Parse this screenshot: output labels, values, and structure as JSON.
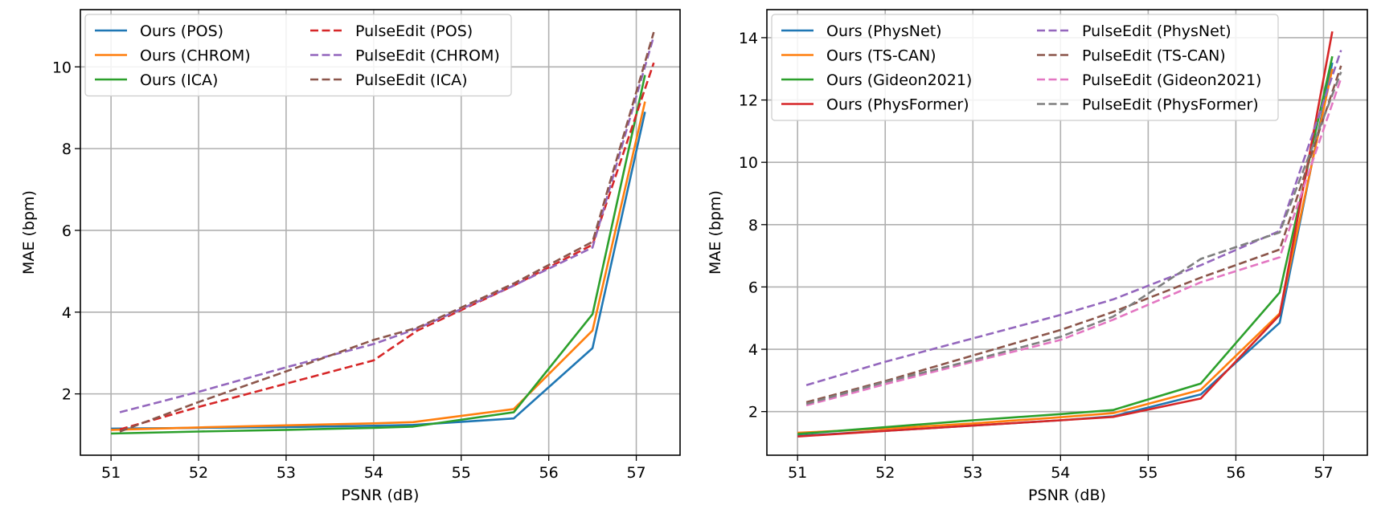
{
  "chart_data": [
    {
      "type": "line",
      "title": "",
      "xlabel": "PSNR (dB)",
      "ylabel": "MAE (bpm)",
      "xlim": [
        50.65,
        57.5
      ],
      "ylim": [
        0.5,
        11.4
      ],
      "xticks": [
        51,
        52,
        53,
        54,
        55,
        56,
        57
      ],
      "yticks": [
        2,
        4,
        6,
        8,
        10
      ],
      "grid": true,
      "legend": {
        "placement": "top-left",
        "columns": 2
      },
      "series": [
        {
          "name": "Ours (POS)",
          "color": "#1f77b4",
          "style": "solid",
          "x": [
            51.0,
            52.0,
            53.0,
            54.0,
            54.45,
            55.6,
            56.5,
            57.1
          ],
          "y": [
            1.15,
            1.17,
            1.19,
            1.22,
            1.24,
            1.4,
            3.12,
            8.9
          ]
        },
        {
          "name": "Ours (CHROM)",
          "color": "#ff7f0e",
          "style": "solid",
          "x": [
            51.0,
            52.0,
            53.0,
            54.0,
            54.45,
            55.6,
            56.5,
            57.1
          ],
          "y": [
            1.12,
            1.18,
            1.23,
            1.28,
            1.31,
            1.63,
            3.55,
            9.15
          ]
        },
        {
          "name": "Ours (ICA)",
          "color": "#2ca02c",
          "style": "solid",
          "x": [
            51.0,
            52.0,
            53.0,
            54.0,
            54.45,
            55.6,
            56.5,
            57.1
          ],
          "y": [
            1.03,
            1.08,
            1.12,
            1.17,
            1.2,
            1.55,
            3.95,
            9.8
          ]
        },
        {
          "name": "PulseEdit (POS)",
          "color": "#d62728",
          "style": "dashed",
          "x": [
            51.1,
            52.0,
            53.0,
            54.0,
            54.5,
            55.6,
            56.5,
            57.2
          ],
          "y": [
            1.13,
            1.68,
            2.25,
            2.82,
            3.55,
            4.65,
            5.65,
            10.1
          ]
        },
        {
          "name": "PulseEdit (CHROM)",
          "color": "#9467bd",
          "style": "dashed",
          "x": [
            51.1,
            52.0,
            53.0,
            54.0,
            54.5,
            55.6,
            56.5,
            57.2
          ],
          "y": [
            1.55,
            2.05,
            2.65,
            3.22,
            3.6,
            4.65,
            5.58,
            10.75
          ]
        },
        {
          "name": "PulseEdit (ICA)",
          "color": "#8c564b",
          "style": "dashed",
          "x": [
            51.1,
            52.0,
            53.0,
            54.0,
            54.5,
            55.6,
            56.5,
            57.2
          ],
          "y": [
            1.08,
            1.8,
            2.55,
            3.32,
            3.62,
            4.7,
            5.72,
            10.85
          ]
        }
      ]
    },
    {
      "type": "line",
      "title": "",
      "xlabel": "PSNR (dB)",
      "ylabel": "MAE (bpm)",
      "xlim": [
        50.65,
        57.5
      ],
      "ylim": [
        0.6,
        14.9
      ],
      "xticks": [
        51,
        52,
        53,
        54,
        55,
        56,
        57
      ],
      "yticks": [
        2,
        4,
        6,
        8,
        10,
        12,
        14
      ],
      "grid": true,
      "legend": {
        "placement": "top-left",
        "columns": 2
      },
      "series": [
        {
          "name": "Ours (PhysNet)",
          "color": "#1f77b4",
          "style": "solid",
          "x": [
            51.0,
            52.0,
            53.0,
            54.0,
            54.6,
            55.6,
            56.5,
            57.1
          ],
          "y": [
            1.22,
            1.38,
            1.55,
            1.72,
            1.85,
            2.55,
            4.85,
            13.2
          ]
        },
        {
          "name": "Ours (TS-CAN)",
          "color": "#ff7f0e",
          "style": "solid",
          "x": [
            51.0,
            52.0,
            53.0,
            54.0,
            54.6,
            55.6,
            56.5,
            57.1
          ],
          "y": [
            1.32,
            1.45,
            1.62,
            1.82,
            1.95,
            2.7,
            5.15,
            13.0
          ]
        },
        {
          "name": "Ours (Gideon2021)",
          "color": "#2ca02c",
          "style": "solid",
          "x": [
            51.0,
            52.0,
            53.0,
            54.0,
            54.6,
            55.6,
            56.5,
            57.1
          ],
          "y": [
            1.28,
            1.5,
            1.72,
            1.92,
            2.05,
            2.9,
            5.82,
            13.4
          ]
        },
        {
          "name": "Ours (PhysFormer)",
          "color": "#d62728",
          "style": "solid",
          "x": [
            51.0,
            52.0,
            53.0,
            54.0,
            54.6,
            55.6,
            56.5,
            57.1
          ],
          "y": [
            1.2,
            1.38,
            1.55,
            1.72,
            1.83,
            2.42,
            5.1,
            14.2
          ]
        },
        {
          "name": "PulseEdit (PhysNet)",
          "color": "#9467bd",
          "style": "dashed",
          "x": [
            51.1,
            52.0,
            53.0,
            54.0,
            54.6,
            55.6,
            56.5,
            57.2
          ],
          "y": [
            2.85,
            3.6,
            4.35,
            5.1,
            5.6,
            6.7,
            7.8,
            13.6
          ]
        },
        {
          "name": "PulseEdit (TS-CAN)",
          "color": "#8c564b",
          "style": "dashed",
          "x": [
            51.1,
            52.0,
            53.0,
            54.0,
            54.6,
            55.6,
            56.5,
            57.2
          ],
          "y": [
            2.3,
            2.98,
            3.8,
            4.62,
            5.2,
            6.3,
            7.2,
            13.1
          ]
        },
        {
          "name": "PulseEdit (Gideon2021)",
          "color": "#e377c2",
          "style": "dashed",
          "x": [
            51.1,
            52.0,
            53.0,
            54.0,
            54.6,
            55.6,
            56.5,
            57.2
          ],
          "y": [
            2.2,
            2.88,
            3.6,
            4.3,
            4.95,
            6.15,
            6.95,
            12.7
          ]
        },
        {
          "name": "PulseEdit (PhysFormer)",
          "color": "#7f7f7f",
          "style": "dashed",
          "x": [
            51.1,
            52.0,
            53.0,
            54.0,
            54.6,
            55.6,
            56.5,
            57.2
          ],
          "y": [
            2.25,
            2.95,
            3.65,
            4.4,
            5.05,
            6.9,
            7.75,
            12.9
          ]
        }
      ]
    }
  ]
}
